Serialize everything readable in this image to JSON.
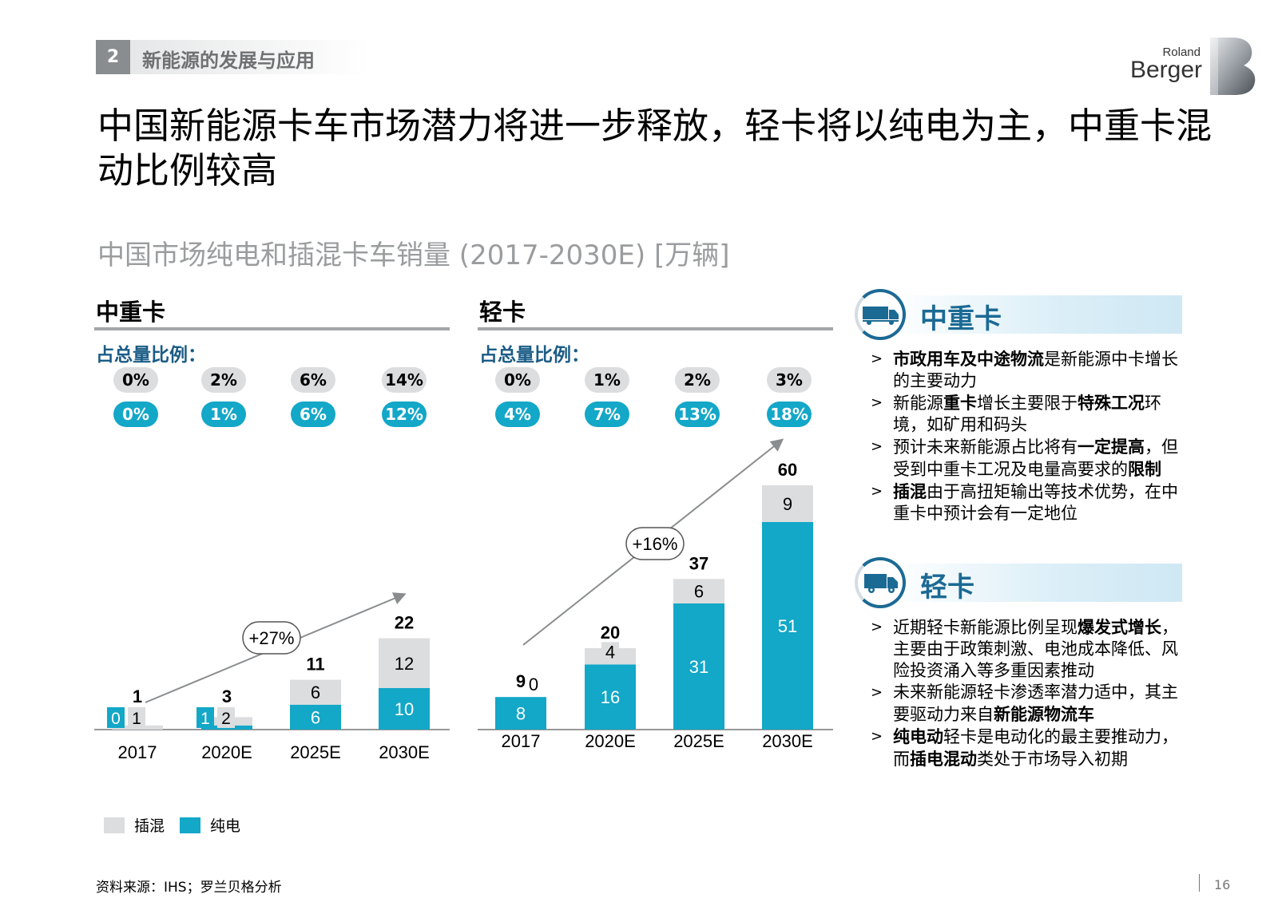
{
  "header": {
    "section_number": "2",
    "section_title": "新能源的发展与应用",
    "logo_line1": "Roland",
    "logo_line2": "Berger"
  },
  "title": "中国新能源卡车市场潜力将进一步释放，轻卡将以纯电为主，中重卡混动比例较高",
  "subtitle": "中国市场纯电和插混卡车销量 (2017-2030E) [万辆]",
  "share_label": "占总量比例：",
  "colors": {
    "phev": "#dcddde",
    "bev": "#13a7c8",
    "accent": "#1b6a94",
    "arrow": "#8a8d8f"
  },
  "legend": {
    "phev": "插混",
    "bev": "纯电"
  },
  "chart_data": [
    {
      "type": "bar",
      "stacked": true,
      "title": "中重卡",
      "categories": [
        "2017",
        "2020E",
        "2025E",
        "2030E"
      ],
      "series": [
        {
          "name": "纯电",
          "values": [
            0,
            1,
            6,
            10
          ]
        },
        {
          "name": "插混",
          "values": [
            1,
            2,
            6,
            12
          ]
        }
      ],
      "totals": [
        "1",
        "3",
        "11",
        "22"
      ],
      "share_phev": [
        "0%",
        "2%",
        "6%",
        "14%"
      ],
      "share_bev": [
        "0%",
        "1%",
        "6%",
        "12%"
      ],
      "cagr": "+27%"
    },
    {
      "type": "bar",
      "stacked": true,
      "title": "轻卡",
      "categories": [
        "2017",
        "2020E",
        "2025E",
        "2030E"
      ],
      "series": [
        {
          "name": "纯电",
          "values": [
            8,
            16,
            31,
            51
          ]
        },
        {
          "name": "插混",
          "values": [
            0,
            4,
            6,
            9
          ]
        }
      ],
      "totals": [
        "9",
        "20",
        "37",
        "60"
      ],
      "share_phev": [
        "0%",
        "1%",
        "2%",
        "3%"
      ],
      "share_bev": [
        "4%",
        "7%",
        "13%",
        "18%"
      ],
      "cagr": "+16%"
    }
  ],
  "right_panel": [
    {
      "title": "中重卡",
      "icon": "truck-icon",
      "bullets": [
        [
          [
            "市政用车及中途物流",
            true
          ],
          [
            "是新能源中卡增长的主要动力",
            false
          ]
        ],
        [
          [
            "新能源",
            false
          ],
          [
            "重卡",
            true
          ],
          [
            "增长主要限于",
            false
          ],
          [
            "特殊工况",
            true
          ],
          [
            "环境，如矿用和码头",
            false
          ]
        ],
        [
          [
            "预计未来新能源占比将有",
            false
          ],
          [
            "一定提高",
            true
          ],
          [
            "，但受到中重卡工况及电量高要求的",
            false
          ],
          [
            "限制",
            true
          ]
        ],
        [
          [
            "插混",
            true
          ],
          [
            "由于高扭矩输出等技术优势，在中重卡中预计会有一定地位",
            false
          ]
        ]
      ]
    },
    {
      "title": "轻卡",
      "icon": "van-icon",
      "bullets": [
        [
          [
            "近期轻卡新能源比例呈现",
            false
          ],
          [
            "爆发式增长",
            true
          ],
          [
            "，主要由于政策刺激、电池成本降低、风险投资涌入等多重因素推动",
            false
          ]
        ],
        [
          [
            "未来新能源轻卡渗透率潜力适中，其主要驱动力来自",
            false
          ],
          [
            "新能源物流车",
            true
          ]
        ],
        [
          [
            "纯电动",
            true
          ],
          [
            "轻卡是电动化的最主要推动力，而",
            false
          ],
          [
            "插电混动",
            true
          ],
          [
            "类处于市场导入初期",
            false
          ]
        ]
      ]
    }
  ],
  "footer": {
    "source": "资料来源：IHS；罗兰贝格分析",
    "page": "16"
  }
}
